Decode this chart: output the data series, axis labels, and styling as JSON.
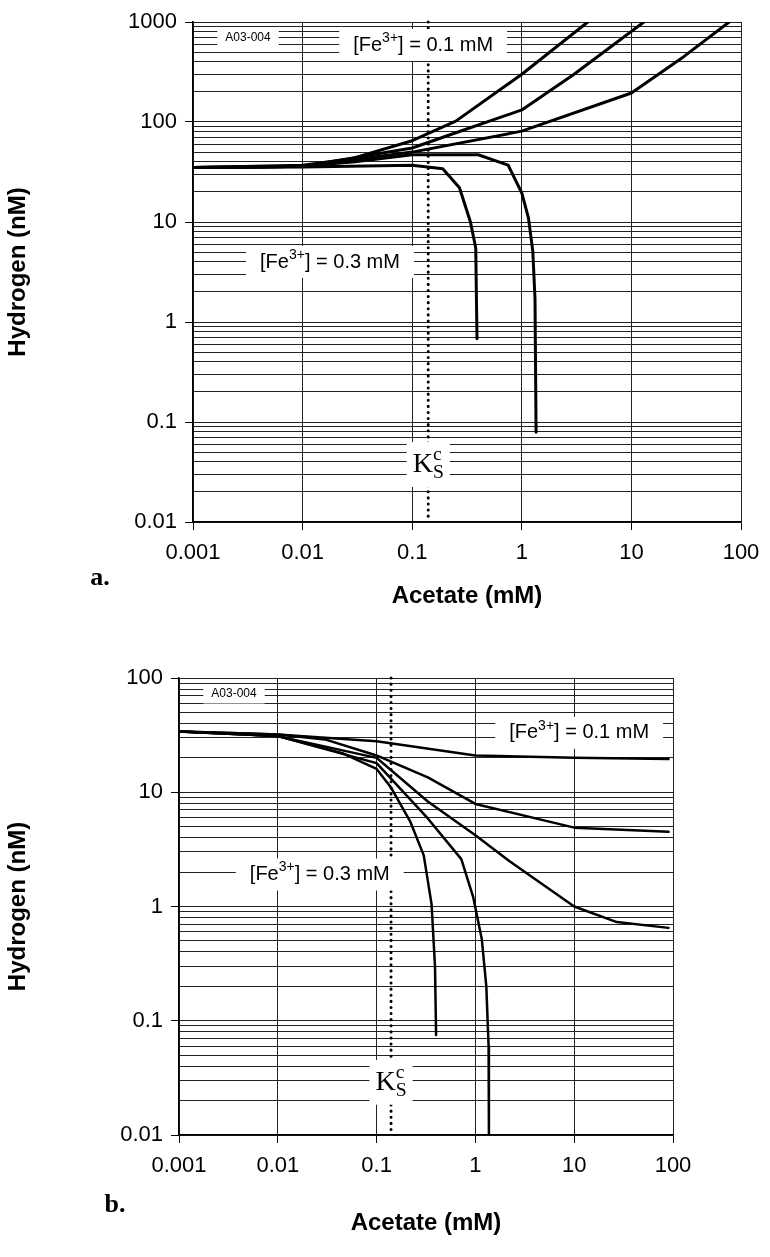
{
  "chart_data": [
    {
      "type": "line",
      "xlabel": "Acetate (mM)",
      "ylabel": "Hydrogen (nM)",
      "log": "xy",
      "grid": true,
      "legend": false,
      "marker": "none",
      "line_style": "solid",
      "xlim": [
        0.001,
        100
      ],
      "xticks": [
        0.001,
        0.01,
        0.1,
        1,
        10,
        100
      ],
      "ylim": [
        0.01,
        1000
      ],
      "yticks": [
        0.01,
        {
          "value": 0.02,
          "label": null
        },
        {
          "value": 0.03,
          "label": null
        },
        {
          "value": 0.04,
          "label": null
        },
        {
          "value": 0.05,
          "label": null
        },
        {
          "value": 0.06,
          "label": null
        },
        {
          "value": 0.07,
          "label": null
        },
        {
          "value": 0.08,
          "label": null
        },
        {
          "value": 0.09,
          "label": null
        },
        0.1,
        {
          "value": 0.2,
          "label": null
        },
        {
          "value": 0.3,
          "label": null
        },
        {
          "value": 0.4,
          "label": null
        },
        {
          "value": 0.5,
          "label": null
        },
        {
          "value": 0.6,
          "label": null
        },
        {
          "value": 0.7,
          "label": null
        },
        {
          "value": 0.8,
          "label": null
        },
        {
          "value": 0.9,
          "label": null
        },
        1,
        {
          "value": 2,
          "label": null
        },
        {
          "value": 3,
          "label": null
        },
        {
          "value": 4,
          "label": null
        },
        {
          "value": 5,
          "label": null
        },
        {
          "value": 6,
          "label": null
        },
        {
          "value": 7,
          "label": null
        },
        {
          "value": 8,
          "label": null
        },
        {
          "value": 9,
          "label": null
        },
        10,
        {
          "value": 20,
          "label": null
        },
        {
          "value": 30,
          "label": null
        },
        {
          "value": 40,
          "label": null
        },
        {
          "value": 50,
          "label": null
        },
        {
          "value": 60,
          "label": null
        },
        {
          "value": 70,
          "label": null
        },
        {
          "value": 80,
          "label": null
        },
        {
          "value": 90,
          "label": null
        },
        100,
        {
          "value": 200,
          "label": null
        },
        {
          "value": 300,
          "label": null
        },
        {
          "value": 400,
          "label": null
        },
        {
          "value": 500,
          "label": null
        },
        {
          "value": 600,
          "label": null
        },
        {
          "value": 700,
          "label": null
        },
        {
          "value": 800,
          "label": null
        },
        {
          "value": 900,
          "label": null
        },
        1000
      ],
      "series": [
        {
          "color": "#000000",
          "x": [
            0.001,
            0.01,
            0.028,
            0.1,
            0.25,
            1,
            4
          ],
          "values": [
            35,
            37,
            43,
            65,
            102,
            300,
            1000
          ]
        },
        {
          "color": "#000000",
          "x": [
            0.001,
            0.01,
            0.1,
            0.25,
            1,
            3,
            13
          ],
          "values": [
            35,
            36,
            55,
            78,
            132,
            300,
            1000
          ]
        },
        {
          "color": "#000000",
          "x": [
            0.001,
            0.01,
            0.1,
            1,
            10,
            30,
            78
          ],
          "values": [
            35,
            36,
            50,
            81,
            195,
            450,
            1000
          ]
        },
        {
          "color": "#000000",
          "x": [
            0.001,
            0.01,
            0.03,
            0.1,
            0.4,
            0.75,
            1,
            1.15,
            1.26,
            1.32,
            1.35
          ],
          "values": [
            35,
            36,
            40,
            47,
            47,
            37,
            19.5,
            11,
            5.1,
            1.7,
            0.079
          ]
        },
        {
          "color": "#000000",
          "x": [
            0.001,
            0.01,
            0.1,
            0.19,
            0.27,
            0.34,
            0.38,
            0.39
          ],
          "values": [
            35,
            35.5,
            37,
            34,
            22,
            10,
            5.5,
            0.68
          ]
        }
      ],
      "ref_lines": [
        {
          "axis": "x",
          "value": 0.14,
          "label": "K$_{S}$$^{c}$",
          "color": "#000000",
          "line_style": "dotted"
        }
      ],
      "annotations": [
        "[Fe$^{3+}$] = 0.1 mM",
        "[Fe$^{3+}$] = 0.3 mM",
        "A03-004",
        "a."
      ]
    },
    {
      "type": "line",
      "xlabel": "Acetate (mM)",
      "ylabel": "Hydrogen (nM)",
      "log": "xy",
      "grid": true,
      "legend": false,
      "marker": "none",
      "line_style": "solid",
      "xlim": [
        0.001,
        100
      ],
      "xticks": [
        0.001,
        0.01,
        0.1,
        1,
        10,
        100
      ],
      "ylim": [
        0.01,
        100
      ],
      "yticks": [
        0.01,
        {
          "value": 0.02,
          "label": null
        },
        {
          "value": 0.03,
          "label": null
        },
        {
          "value": 0.04,
          "label": null
        },
        {
          "value": 0.05,
          "label": null
        },
        {
          "value": 0.06,
          "label": null
        },
        {
          "value": 0.07,
          "label": null
        },
        {
          "value": 0.08,
          "label": null
        },
        {
          "value": 0.09,
          "label": null
        },
        0.1,
        {
          "value": 0.2,
          "label": null
        },
        {
          "value": 0.3,
          "label": null
        },
        {
          "value": 0.4,
          "label": null
        },
        {
          "value": 0.5,
          "label": null
        },
        {
          "value": 0.6,
          "label": null
        },
        {
          "value": 0.7,
          "label": null
        },
        {
          "value": 0.8,
          "label": null
        },
        {
          "value": 0.9,
          "label": null
        },
        1,
        {
          "value": 2,
          "label": null
        },
        {
          "value": 3,
          "label": null
        },
        {
          "value": 4,
          "label": null
        },
        {
          "value": 5,
          "label": null
        },
        {
          "value": 6,
          "label": null
        },
        {
          "value": 7,
          "label": null
        },
        {
          "value": 8,
          "label": null
        },
        {
          "value": 9,
          "label": null
        },
        10,
        {
          "value": 20,
          "label": null
        },
        {
          "value": 30,
          "label": null
        },
        {
          "value": 40,
          "label": null
        },
        {
          "value": 50,
          "label": null
        },
        {
          "value": 60,
          "label": null
        },
        {
          "value": 70,
          "label": null
        },
        {
          "value": 80,
          "label": null
        },
        {
          "value": 90,
          "label": null
        },
        100
      ],
      "series": [
        {
          "color": "#000000",
          "x": [
            0.001,
            0.01,
            0.1,
            1,
            10,
            90
          ],
          "values": [
            34,
            32,
            28,
            21,
            20,
            19.5
          ]
        },
        {
          "color": "#000000",
          "x": [
            0.001,
            0.01,
            0.03,
            0.1,
            0.33,
            1,
            10,
            90
          ],
          "values": [
            34,
            32,
            29,
            21,
            13.5,
            7.9,
            4.9,
            4.5
          ]
        },
        {
          "color": "#000000",
          "x": [
            0.001,
            0.01,
            0.1,
            0.33,
            1,
            2.2,
            10,
            27,
            90
          ],
          "values": [
            34,
            31,
            20,
            8.3,
            4.2,
            2.5,
            1,
            0.73,
            0.65
          ]
        },
        {
          "color": "#000000",
          "x": [
            0.001,
            0.01,
            0.1,
            0.33,
            0.72,
            0.95,
            1.16,
            1.29,
            1.36,
            1.37
          ],
          "values": [
            34,
            31,
            18,
            5.9,
            2.6,
            1.21,
            0.52,
            0.2,
            0.06,
            0.01
          ]
        },
        {
          "color": "#000000",
          "x": [
            0.001,
            0.01,
            0.045,
            0.1,
            0.14,
            0.22,
            0.3,
            0.36,
            0.39,
            0.4
          ],
          "values": [
            34,
            31,
            22,
            16,
            11,
            5.5,
            2.8,
            1.05,
            0.3,
            0.075
          ]
        }
      ],
      "ref_lines": [
        {
          "axis": "x",
          "value": 0.14,
          "label": "K$_{S}$$^{c}$",
          "color": "#000000",
          "line_style": "dotted"
        }
      ],
      "annotations": [
        "[Fe$^{3+}$] = 0.1 mM",
        "[Fe$^{3+}$] = 0.3 mM",
        "A03-004",
        "b."
      ]
    }
  ]
}
